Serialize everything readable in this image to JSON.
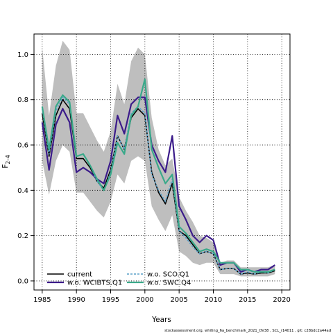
{
  "chart_data": {
    "type": "line",
    "xlabel": "Years",
    "ylabel_main": "F",
    "ylabel_sub": "2–4",
    "footer": "stockassessment.org,  whiting_6a_benchmark_2021_OV38 ,  SCL_r14011 ,  git: c28bdc2a44ad",
    "xlim": [
      1983.8,
      2021.2
    ],
    "ylim": [
      -0.04,
      1.09
    ],
    "xticks": [
      1985,
      1990,
      1995,
      2000,
      2005,
      2010,
      2015,
      2020
    ],
    "yticks": [
      0.0,
      0.2,
      0.4,
      0.6,
      0.8,
      1.0
    ],
    "grid": true,
    "legend_position": "bottom-left",
    "x": [
      1985,
      1986,
      1987,
      1988,
      1989,
      1990,
      1991,
      1992,
      1993,
      1994,
      1995,
      1996,
      1997,
      1998,
      1999,
      2000,
      2001,
      2002,
      2003,
      2004,
      2005,
      2006,
      2007,
      2008,
      2009,
      2010,
      2011,
      2012,
      2013,
      2014,
      2015,
      2016,
      2017,
      2018,
      2019
    ],
    "band": {
      "color": "#bebebe",
      "upper": [
        1.03,
        0.73,
        0.95,
        1.06,
        1.02,
        0.74,
        0.74,
        0.68,
        0.62,
        0.57,
        0.66,
        0.87,
        0.78,
        0.97,
        1.03,
        1.0,
        0.72,
        0.58,
        0.51,
        0.54,
        0.37,
        0.31,
        0.26,
        0.2,
        0.19,
        0.17,
        0.08,
        0.09,
        0.09,
        0.06,
        0.06,
        0.06,
        0.06,
        0.06,
        0.07
      ],
      "lower": [
        0.53,
        0.38,
        0.53,
        0.6,
        0.57,
        0.39,
        0.39,
        0.35,
        0.31,
        0.28,
        0.35,
        0.47,
        0.43,
        0.53,
        0.55,
        0.53,
        0.33,
        0.27,
        0.22,
        0.29,
        0.13,
        0.11,
        0.08,
        0.07,
        0.08,
        0.08,
        0.03,
        0.03,
        0.03,
        0.02,
        0.02,
        0.02,
        0.02,
        0.02,
        0.03
      ]
    },
    "series": [
      {
        "name": "current",
        "color": "#000000",
        "dash": "",
        "width": 1.6,
        "values": [
          0.74,
          0.55,
          0.73,
          0.8,
          0.76,
          0.54,
          0.54,
          0.5,
          0.44,
          0.41,
          0.49,
          0.64,
          0.58,
          0.72,
          0.76,
          0.73,
          0.48,
          0.39,
          0.34,
          0.43,
          0.22,
          0.2,
          0.16,
          0.12,
          0.13,
          0.12,
          0.05,
          0.055,
          0.055,
          0.03,
          0.035,
          0.03,
          0.035,
          0.035,
          0.045
        ]
      },
      {
        "name": "w.o. WCIBTS.Q1",
        "color": "#3b1b8a",
        "dash": "",
        "width": 2.2,
        "values": [
          0.7,
          0.49,
          0.69,
          0.76,
          0.7,
          0.48,
          0.5,
          0.48,
          0.45,
          0.43,
          0.53,
          0.73,
          0.65,
          0.78,
          0.81,
          0.81,
          0.6,
          0.53,
          0.48,
          0.64,
          0.33,
          0.27,
          0.2,
          0.17,
          0.2,
          0.18,
          0.07,
          0.08,
          0.08,
          0.04,
          0.05,
          0.04,
          0.05,
          0.05,
          0.07
        ]
      },
      {
        "name": "w.o. SCO.Q1",
        "color": "#5aa0c8",
        "dash": "3,2",
        "width": 1.6,
        "values": [
          0.76,
          0.56,
          0.75,
          0.81,
          0.78,
          0.55,
          0.56,
          0.51,
          0.44,
          0.4,
          0.48,
          0.64,
          0.58,
          0.74,
          0.77,
          0.74,
          0.47,
          0.4,
          0.35,
          0.45,
          0.22,
          0.19,
          0.15,
          0.12,
          0.13,
          0.12,
          0.05,
          0.055,
          0.055,
          0.03,
          0.04,
          0.03,
          0.04,
          0.035,
          0.05
        ]
      },
      {
        "name": "w.o. SWC.Q4",
        "color": "#3aa98a",
        "dash": "",
        "width": 2.2,
        "values": [
          0.77,
          0.58,
          0.77,
          0.82,
          0.79,
          0.55,
          0.56,
          0.51,
          0.45,
          0.4,
          0.47,
          0.61,
          0.56,
          0.73,
          0.77,
          0.89,
          0.58,
          0.5,
          0.43,
          0.47,
          0.24,
          0.21,
          0.17,
          0.13,
          0.14,
          0.13,
          0.08,
          0.08,
          0.08,
          0.05,
          0.05,
          0.04,
          0.04,
          0.04,
          0.05
        ]
      }
    ]
  }
}
